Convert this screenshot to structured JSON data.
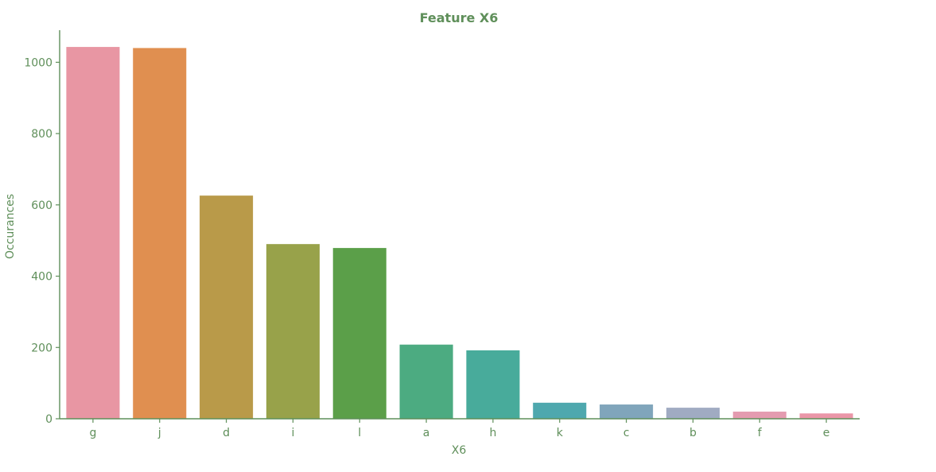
{
  "chart_data": {
    "type": "bar",
    "title": "Feature X6",
    "xlabel": "X6",
    "ylabel": "Occurances",
    "categories": [
      "g",
      "j",
      "d",
      "i",
      "l",
      "a",
      "h",
      "k",
      "c",
      "b",
      "f",
      "e"
    ],
    "values": [
      1043,
      1040,
      626,
      490,
      479,
      208,
      192,
      45,
      40,
      31,
      20,
      15
    ],
    "colors": [
      "#e896a3",
      "#e08f50",
      "#b99a49",
      "#98a24a",
      "#5b9f49",
      "#4cab81",
      "#48ab9b",
      "#4ea8ae",
      "#80a5bb",
      "#a0abc2",
      "#e49bb0",
      "#ea96a8"
    ],
    "yticks": [
      0,
      200,
      400,
      600,
      800,
      1000
    ],
    "ylim": [
      0,
      1090
    ],
    "grid": false,
    "legend": "none",
    "text_color": "#5f8f5a",
    "axis_color": "#5f8f5a"
  }
}
